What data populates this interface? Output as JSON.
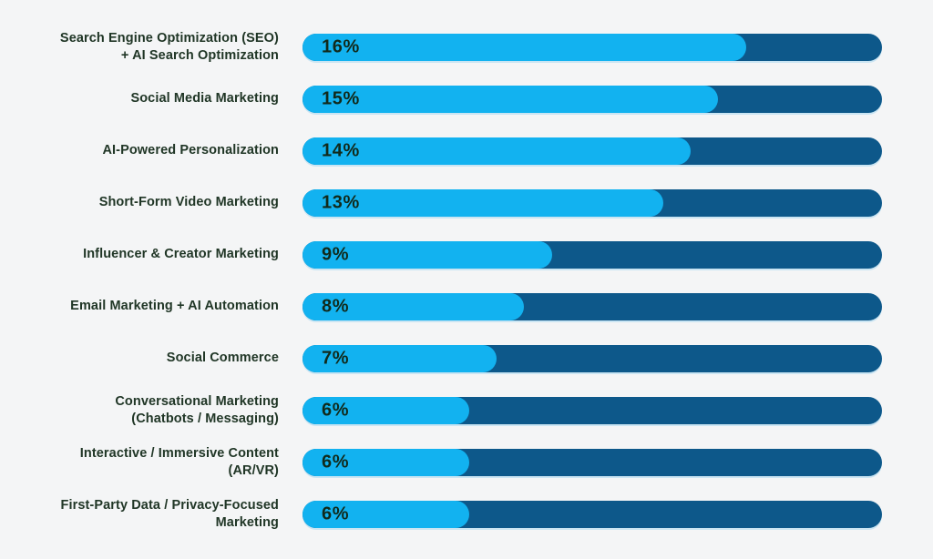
{
  "page": {
    "background": "#f4f5f6"
  },
  "chart_data": {
    "type": "bar",
    "orientation": "horizontal",
    "title": "",
    "xlabel": "",
    "ylabel": "",
    "grid": false,
    "legend": false,
    "unit": "%",
    "xlim": [
      0,
      20.9
    ],
    "categories": [
      "Search Engine Optimization (SEO) + AI Search Optimization",
      "Social Media Marketing",
      "AI-Powered Personalization",
      "Short-Form Video Marketing",
      "Influencer & Creator Marketing",
      "Email Marketing + AI Automation",
      "Social Commerce",
      "Conversational Marketing (Chatbots / Messaging)",
      "Interactive / Immersive Content (AR/VR)",
      "First-Party Data / Privacy-Focused Marketing"
    ],
    "label_lines": [
      [
        "Search Engine Optimization (SEO)",
        "+ AI Search Optimization"
      ],
      [
        "Social Media Marketing"
      ],
      [
        "AI-Powered Personalization"
      ],
      [
        "Short-Form Video Marketing"
      ],
      [
        "Influencer & Creator Marketing"
      ],
      [
        "Email Marketing + AI Automation"
      ],
      [
        "Social Commerce"
      ],
      [
        "Conversational Marketing",
        "(Chatbots / Messaging)"
      ],
      [
        "Interactive / Immersive Content",
        "(AR/VR)"
      ],
      [
        "First-Party Data / Privacy-Focused",
        "Marketing"
      ]
    ],
    "values": [
      16,
      15,
      14,
      13,
      9,
      8,
      7,
      6,
      6,
      6
    ],
    "value_labels": [
      "16%",
      "15%",
      "14%",
      "13%",
      "9%",
      "8%",
      "7%",
      "6%",
      "6%",
      "6%"
    ],
    "colors": {
      "bar_fill": "#12b2f0",
      "bar_track": "#0d588a",
      "category_text": "#203626",
      "value_text": "#112a1b",
      "background": "#f4f5f6"
    }
  }
}
